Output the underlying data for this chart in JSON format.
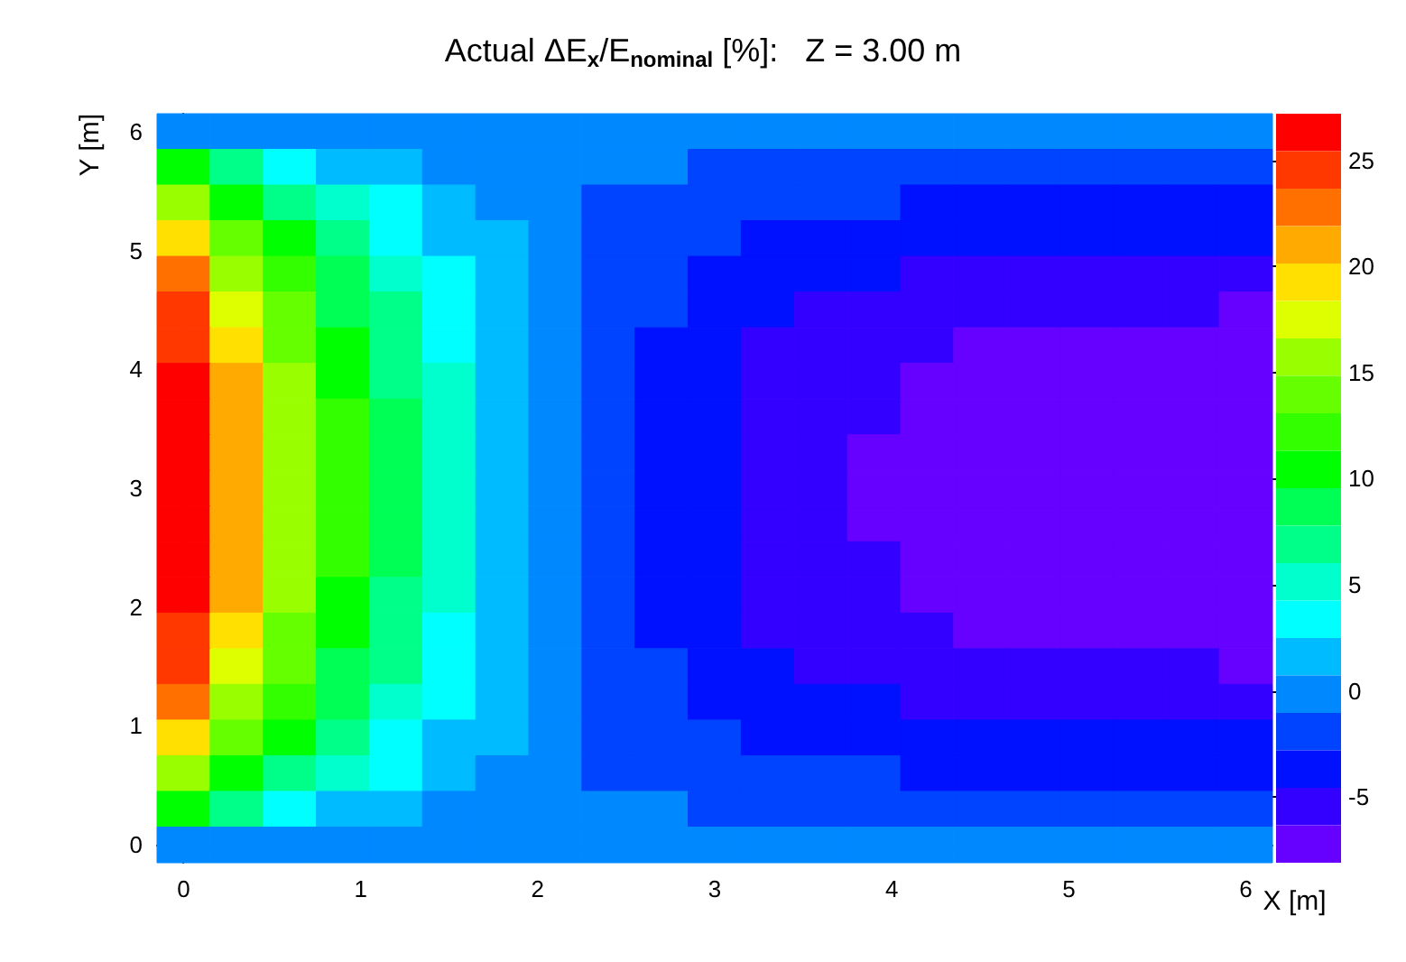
{
  "chart_data": {
    "type": "heatmap",
    "title": "Actual ΔE$_{x}$/E$_{nominal}$ [%]:   Z = 3.00 m",
    "xlabel": "X [m]",
    "ylabel": "Y [m]",
    "cells": [
      [
        -0.2,
        -0.2,
        -0.2,
        -0.2,
        -0.2,
        -0.2,
        -0.2,
        -0.2,
        -0.2,
        -0.2,
        -0.2,
        -0.2,
        -0.2,
        -0.2,
        -0.2,
        -0.2,
        -0.2,
        -0.2,
        -0.2,
        -0.2,
        -0.2
      ],
      [
        10.4,
        6.9,
        3.4,
        1.6,
        1.6,
        -0.2,
        -0.2,
        -0.2,
        -0.2,
        -0.2,
        -1.9,
        -1.9,
        -1.9,
        -1.9,
        -1.9,
        -1.9,
        -1.9,
        -1.9,
        -1.9,
        -1.9,
        -1.9
      ],
      [
        15.7,
        10.4,
        6.9,
        5.1,
        3.4,
        1.6,
        -0.2,
        -0.2,
        -1.9,
        -1.9,
        -1.9,
        -1.9,
        -1.9,
        -1.9,
        -3.7,
        -3.7,
        -3.7,
        -3.7,
        -3.7,
        -3.7,
        -3.7
      ],
      [
        19.3,
        14.0,
        10.4,
        6.9,
        3.4,
        1.6,
        1.6,
        -0.2,
        -1.9,
        -1.9,
        -1.9,
        -3.7,
        -3.7,
        -3.7,
        -3.7,
        -3.7,
        -3.7,
        -3.7,
        -3.7,
        -3.7,
        -3.7
      ],
      [
        22.8,
        15.7,
        12.2,
        8.7,
        5.1,
        3.4,
        1.6,
        -0.2,
        -1.9,
        -1.9,
        -3.7,
        -3.7,
        -3.7,
        -3.7,
        -5.5,
        -5.5,
        -5.5,
        -5.5,
        -5.5,
        -5.5,
        -5.5
      ],
      [
        24.5,
        17.5,
        14.0,
        8.7,
        6.9,
        3.4,
        1.6,
        -0.2,
        -1.9,
        -1.9,
        -3.7,
        -3.7,
        -5.5,
        -5.5,
        -5.5,
        -5.5,
        -5.5,
        -5.5,
        -5.5,
        -5.5,
        -7.2
      ],
      [
        24.5,
        19.3,
        14.0,
        10.4,
        6.9,
        3.4,
        1.6,
        -0.2,
        -1.9,
        -3.7,
        -3.7,
        -5.5,
        -5.5,
        -5.5,
        -5.5,
        -7.2,
        -7.2,
        -7.2,
        -7.2,
        -7.2,
        -7.2
      ],
      [
        26.3,
        21.0,
        15.7,
        10.4,
        6.9,
        5.1,
        1.6,
        -0.2,
        -1.9,
        -3.7,
        -3.7,
        -5.5,
        -5.5,
        -5.5,
        -7.2,
        -7.2,
        -7.2,
        -7.2,
        -7.2,
        -7.2,
        -7.2
      ],
      [
        26.3,
        21.0,
        15.7,
        12.2,
        8.7,
        5.1,
        1.6,
        -0.2,
        -1.9,
        -3.7,
        -3.7,
        -5.5,
        -5.5,
        -5.5,
        -7.2,
        -7.2,
        -7.2,
        -7.2,
        -7.2,
        -7.2,
        -7.2
      ],
      [
        26.3,
        21.0,
        15.7,
        12.2,
        8.7,
        5.1,
        1.6,
        -0.2,
        -1.9,
        -3.7,
        -3.7,
        -5.5,
        -5.5,
        -7.2,
        -7.2,
        -7.2,
        -7.2,
        -7.2,
        -7.2,
        -7.2,
        -7.2
      ],
      [
        26.3,
        21.0,
        15.7,
        12.2,
        8.7,
        5.1,
        1.6,
        -0.2,
        -1.9,
        -3.7,
        -3.7,
        -5.5,
        -5.5,
        -7.2,
        -7.2,
        -7.2,
        -7.2,
        -7.2,
        -7.2,
        -7.2,
        -7.2
      ],
      [
        26.3,
        21.0,
        15.7,
        12.2,
        8.7,
        5.1,
        1.6,
        -0.2,
        -1.9,
        -3.7,
        -3.7,
        -5.5,
        -5.5,
        -7.2,
        -7.2,
        -7.2,
        -7.2,
        -7.2,
        -7.2,
        -7.2,
        -7.2
      ],
      [
        26.3,
        21.0,
        15.7,
        12.2,
        8.7,
        5.1,
        1.6,
        -0.2,
        -1.9,
        -3.7,
        -3.7,
        -5.5,
        -5.5,
        -5.5,
        -7.2,
        -7.2,
        -7.2,
        -7.2,
        -7.2,
        -7.2,
        -7.2
      ],
      [
        26.3,
        21.0,
        15.7,
        10.4,
        6.9,
        5.1,
        1.6,
        -0.2,
        -1.9,
        -3.7,
        -3.7,
        -5.5,
        -5.5,
        -5.5,
        -7.2,
        -7.2,
        -7.2,
        -7.2,
        -7.2,
        -7.2,
        -7.2
      ],
      [
        24.5,
        19.3,
        14.0,
        10.4,
        6.9,
        3.4,
        1.6,
        -0.2,
        -1.9,
        -3.7,
        -3.7,
        -5.5,
        -5.5,
        -5.5,
        -5.5,
        -7.2,
        -7.2,
        -7.2,
        -7.2,
        -7.2,
        -7.2
      ],
      [
        24.5,
        17.5,
        14.0,
        8.7,
        6.9,
        3.4,
        1.6,
        -0.2,
        -1.9,
        -1.9,
        -3.7,
        -3.7,
        -5.5,
        -5.5,
        -5.5,
        -5.5,
        -5.5,
        -5.5,
        -5.5,
        -5.5,
        -7.2
      ],
      [
        22.8,
        15.7,
        12.2,
        8.7,
        5.1,
        3.4,
        1.6,
        -0.2,
        -1.9,
        -1.9,
        -3.7,
        -3.7,
        -3.7,
        -3.7,
        -5.5,
        -5.5,
        -5.5,
        -5.5,
        -5.5,
        -5.5,
        -5.5
      ],
      [
        19.3,
        14.0,
        10.4,
        6.9,
        3.4,
        1.6,
        1.6,
        -0.2,
        -1.9,
        -1.9,
        -1.9,
        -3.7,
        -3.7,
        -3.7,
        -3.7,
        -3.7,
        -3.7,
        -3.7,
        -3.7,
        -3.7,
        -3.7
      ],
      [
        15.7,
        10.4,
        6.9,
        5.1,
        3.4,
        1.6,
        -0.2,
        -0.2,
        -1.9,
        -1.9,
        -1.9,
        -1.9,
        -1.9,
        -1.9,
        -3.7,
        -3.7,
        -3.7,
        -3.7,
        -3.7,
        -3.7,
        -3.7
      ],
      [
        10.4,
        6.9,
        3.4,
        1.6,
        1.6,
        -0.2,
        -0.2,
        -0.2,
        -0.2,
        -0.2,
        -1.9,
        -1.9,
        -1.9,
        -1.9,
        -1.9,
        -1.9,
        -1.9,
        -1.9,
        -1.9,
        -1.9,
        -1.9
      ],
      [
        -0.2,
        -0.2,
        -0.2,
        -0.2,
        -0.2,
        -0.2,
        -0.2,
        -0.2,
        -0.2,
        -0.2,
        -0.2,
        -0.2,
        -0.2,
        -0.2,
        -0.2,
        -0.2,
        -0.2,
        -0.2,
        -0.2,
        -0.2,
        -0.2
      ]
    ],
    "xlim": [
      -0.15,
      6.15
    ],
    "ylim": [
      -0.15,
      6.15
    ],
    "xticks": [
      0,
      1,
      2,
      3,
      4,
      5,
      6
    ],
    "yticks": [
      0,
      1,
      2,
      3,
      4,
      5,
      6
    ],
    "clim": [
      -8.1,
      27.2
    ],
    "cticks": [
      -5,
      0,
      5,
      10,
      15,
      20,
      25
    ]
  }
}
